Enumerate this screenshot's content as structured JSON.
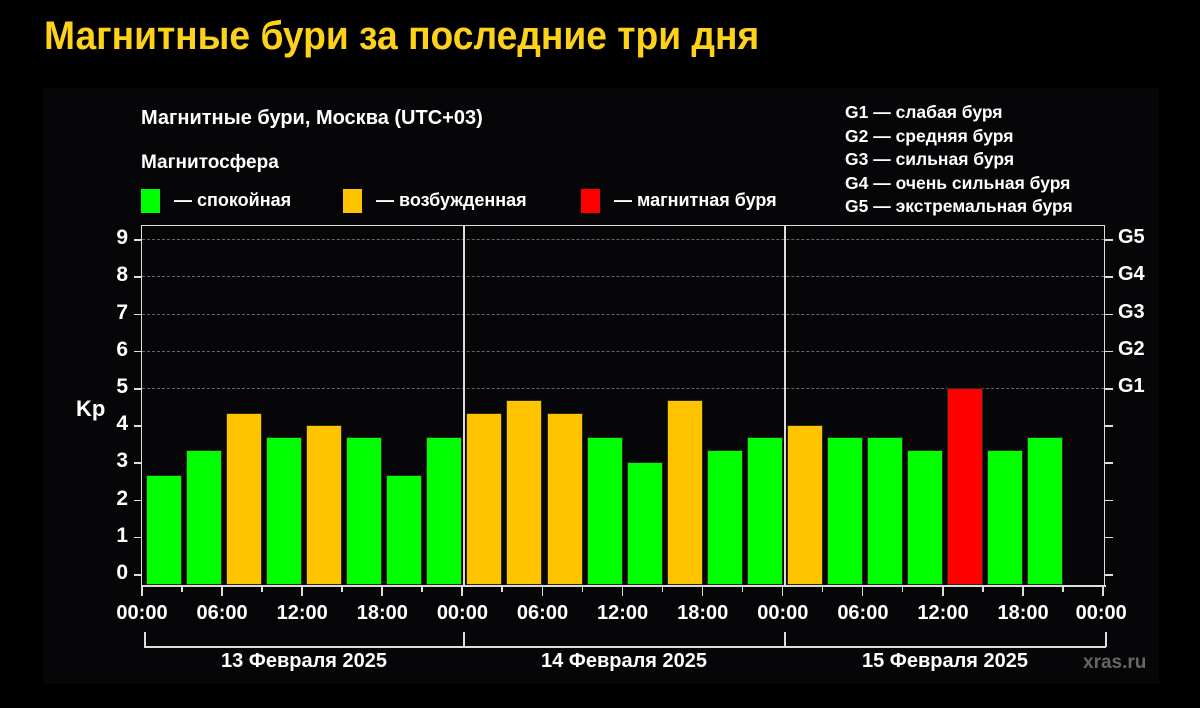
{
  "header": {
    "title": "Магнитные бури за последние три дня"
  },
  "chart": {
    "title": "Магнитные бури, Москва (UTC+03)",
    "subtitle": "Магнитосфера",
    "legend": [
      {
        "label": "— спокойная",
        "color": "#00ff00"
      },
      {
        "label": "— возбужденная",
        "color": "#ffc400"
      },
      {
        "label": "— магнитная буря",
        "color": "#ff0000"
      }
    ],
    "g_legend": [
      "G1 — слабая буря",
      "G2 — средняя буря",
      "G3 — сильная буря",
      "G4 — очень сильная буря",
      "G5 — экстремальная буря"
    ],
    "y_axis_label": "Kp",
    "y_ticks": [
      "0",
      "1",
      "2",
      "3",
      "4",
      "5",
      "6",
      "7",
      "8",
      "9"
    ],
    "g_ticks": [
      {
        "label": "G1",
        "kp": 5
      },
      {
        "label": "G2",
        "kp": 6
      },
      {
        "label": "G3",
        "kp": 7
      },
      {
        "label": "G4",
        "kp": 8
      },
      {
        "label": "G5",
        "kp": 9
      }
    ],
    "x_ticks": [
      "00:00",
      "06:00",
      "12:00",
      "18:00",
      "00:00",
      "06:00",
      "12:00",
      "18:00",
      "00:00",
      "06:00",
      "12:00",
      "18:00",
      "00:00"
    ],
    "days": [
      "13 Февраля 2025",
      "14 Февраля 2025",
      "15 Февраля 2025"
    ],
    "watermark": "xras.ru"
  },
  "chart_data": {
    "type": "bar",
    "title": "Магнитные бури, Москва (UTC+03)",
    "xlabel": "",
    "ylabel": "Kp",
    "ylim": [
      0,
      9
    ],
    "grid": true,
    "legend_position": "top",
    "categories": [
      "13.02 00:00",
      "13.02 03:00",
      "13.02 06:00",
      "13.02 09:00",
      "13.02 12:00",
      "13.02 15:00",
      "13.02 18:00",
      "13.02 21:00",
      "14.02 00:00",
      "14.02 03:00",
      "14.02 06:00",
      "14.02 09:00",
      "14.02 12:00",
      "14.02 15:00",
      "14.02 18:00",
      "14.02 21:00",
      "15.02 00:00",
      "15.02 03:00",
      "15.02 06:00",
      "15.02 09:00",
      "15.02 12:00",
      "15.02 15:00",
      "15.02 18:00"
    ],
    "values": [
      2.67,
      3.33,
      4.33,
      3.67,
      4.0,
      3.67,
      2.67,
      3.67,
      4.33,
      4.67,
      4.33,
      3.67,
      3.0,
      4.67,
      3.33,
      3.67,
      4.0,
      3.67,
      3.67,
      3.33,
      5.0,
      3.33,
      3.67
    ],
    "status": [
      "calm",
      "calm",
      "excited",
      "calm",
      "excited",
      "calm",
      "calm",
      "calm",
      "excited",
      "excited",
      "excited",
      "calm",
      "calm",
      "excited",
      "calm",
      "calm",
      "excited",
      "calm",
      "calm",
      "calm",
      "storm",
      "calm",
      "calm"
    ],
    "colors": {
      "calm": "#00ff00",
      "excited": "#ffc400",
      "storm": "#ff0000"
    },
    "secondary_axis": {
      "G1": 5,
      "G2": 6,
      "G3": 7,
      "G4": 8,
      "G5": 9
    }
  }
}
